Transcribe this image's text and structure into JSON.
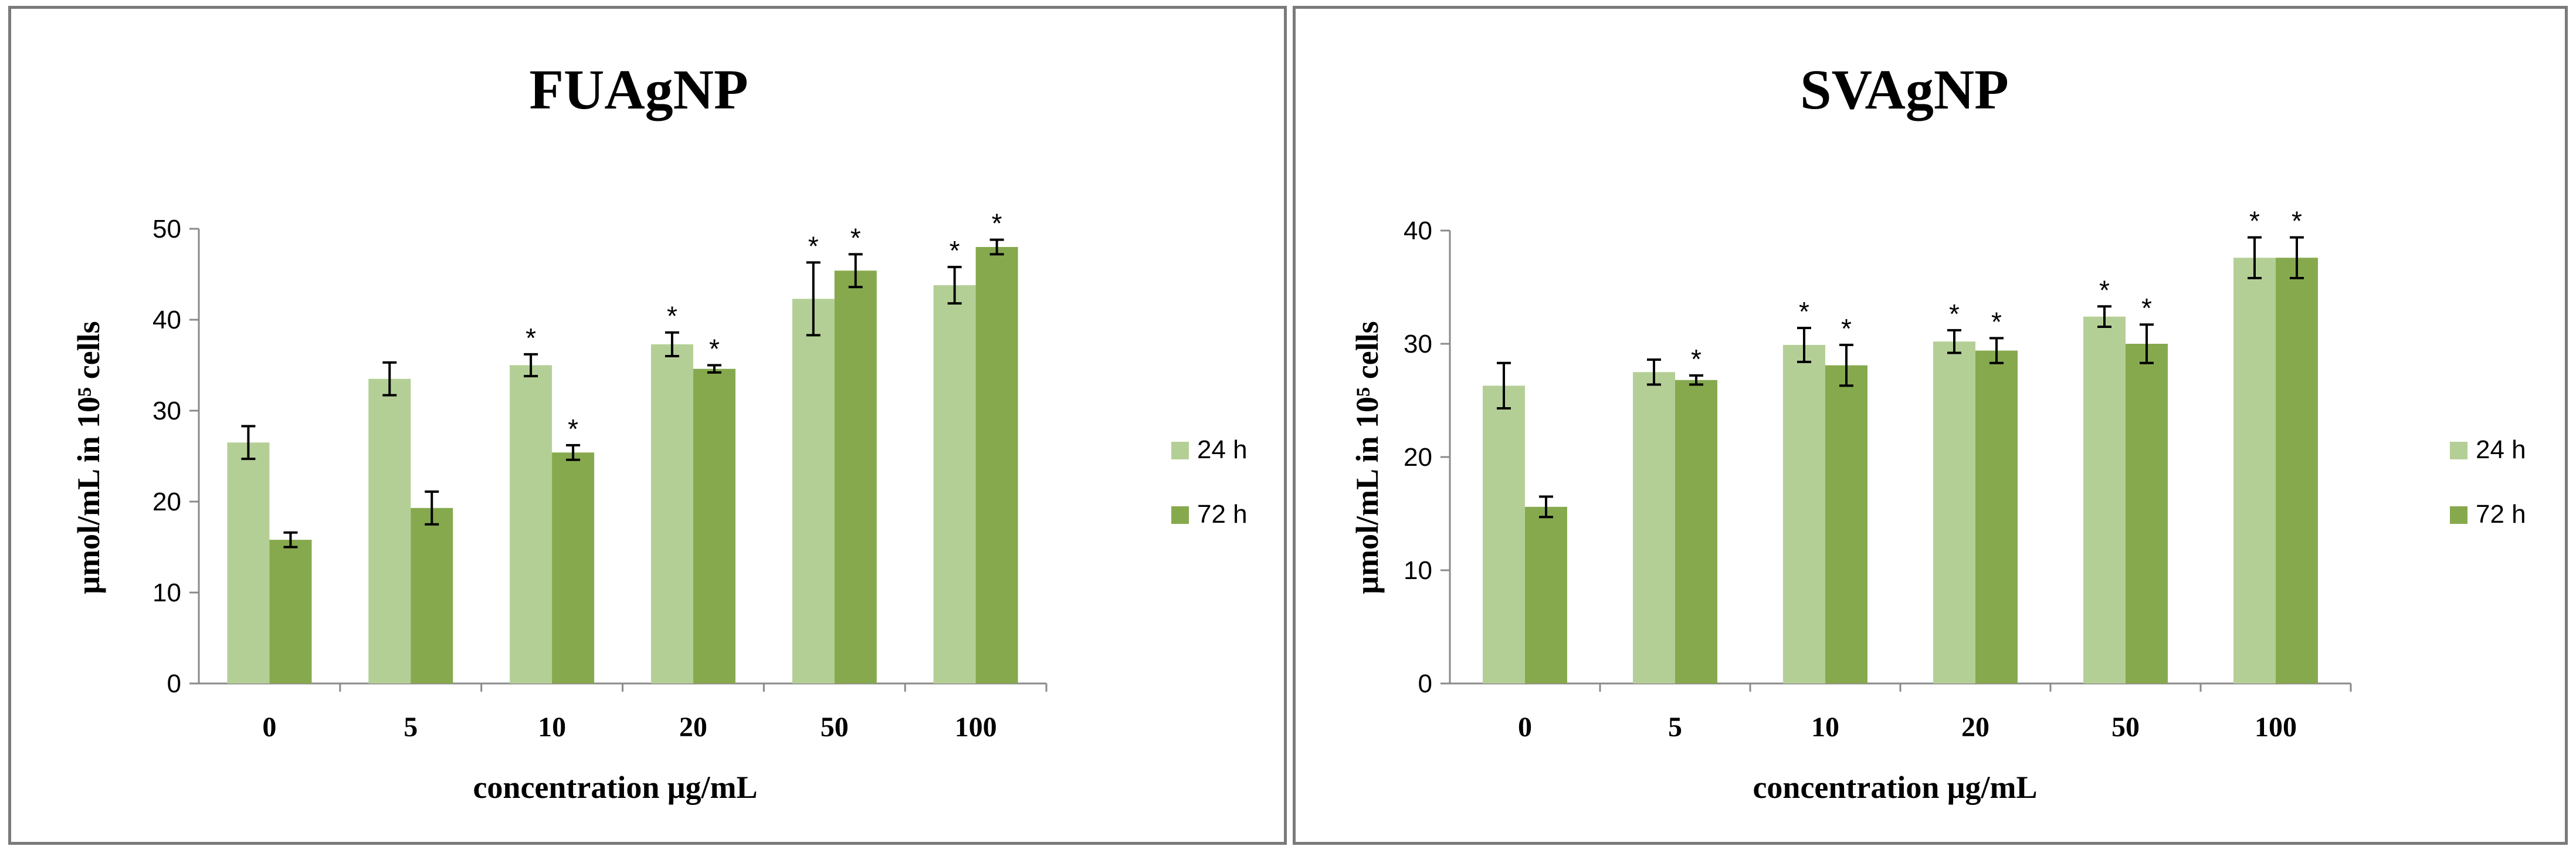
{
  "chart_data": [
    {
      "type": "bar",
      "title": "FUAgNP",
      "xlabel": "concentration μg/mL",
      "ylabel": "μmol/mL  in 10⁵ cells",
      "ylim": [
        0,
        50
      ],
      "yticks": [
        0,
        10,
        20,
        30,
        40,
        50
      ],
      "categories": [
        "0",
        "5",
        "10",
        "20",
        "50",
        "100"
      ],
      "series": [
        {
          "name": "24 h",
          "color": "#b4cf96",
          "values": [
            26.5,
            33.5,
            35.0,
            37.3,
            42.3,
            43.8
          ],
          "errors": [
            1.8,
            1.8,
            1.2,
            1.3,
            4.0,
            2.0
          ],
          "significant": [
            false,
            false,
            true,
            true,
            true,
            true
          ]
        },
        {
          "name": "72 h",
          "color": "#86a94e",
          "values": [
            15.8,
            19.3,
            25.4,
            34.6,
            45.4,
            48.0
          ],
          "errors": [
            0.8,
            1.8,
            0.8,
            0.4,
            1.8,
            0.8
          ],
          "significant": [
            false,
            false,
            true,
            true,
            true,
            true
          ]
        }
      ],
      "significance_marker": "*",
      "legend": "right"
    },
    {
      "type": "bar",
      "title": "SVAgNP",
      "xlabel": "concentration μg/mL",
      "ylabel": "μmol/mL  in 10⁵ cells",
      "ylim": [
        0,
        40
      ],
      "yticks": [
        0,
        10,
        20,
        30,
        40
      ],
      "categories": [
        "0",
        "5",
        "10",
        "20",
        "50",
        "100"
      ],
      "series": [
        {
          "name": "24 h",
          "color": "#b4cf96",
          "values": [
            26.3,
            27.5,
            29.9,
            30.2,
            32.4,
            37.6
          ],
          "errors": [
            2.0,
            1.1,
            1.5,
            1.0,
            0.9,
            1.8
          ],
          "significant": [
            false,
            false,
            true,
            true,
            true,
            true
          ]
        },
        {
          "name": "72 h",
          "color": "#86a94e",
          "values": [
            15.6,
            26.8,
            28.1,
            29.4,
            30.0,
            37.6
          ],
          "errors": [
            0.9,
            0.4,
            1.8,
            1.1,
            1.7,
            1.8
          ],
          "significant": [
            false,
            true,
            true,
            true,
            true,
            true
          ]
        }
      ],
      "significance_marker": "*",
      "legend": "right"
    }
  ]
}
